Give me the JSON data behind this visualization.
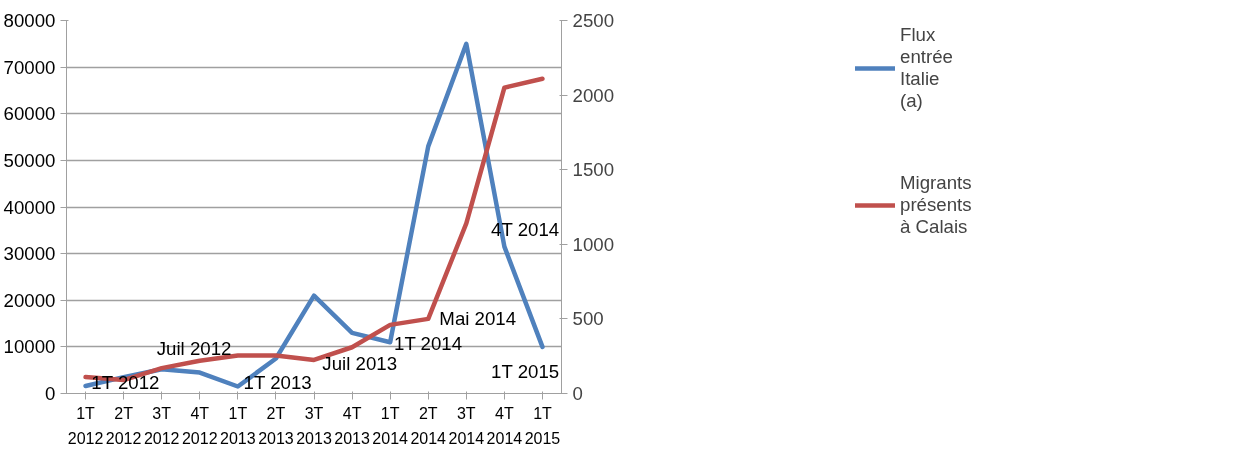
{
  "chart_data": {
    "type": "line",
    "categories": [
      "1T 2012",
      "2T 2012",
      "3T 2012",
      "4T 2012",
      "1T 2013",
      "2T 2013",
      "3T 2013",
      "4T 2013",
      "1T 2014",
      "2T 2014",
      "3T 2014",
      "4T 2014",
      "1T 2015"
    ],
    "series": [
      {
        "name": "Flux entrée Italie (a)",
        "color": "#4f81bd",
        "values": [
          1600,
          3500,
          5200,
          4500,
          1500,
          7500,
          21000,
          13000,
          11000,
          53000,
          75000,
          31500,
          10000
        ]
      },
      {
        "name": "Migrants présents à Calais",
        "color": "#c0504d",
        "axis": "y2",
        "values": [
          110,
          90,
          170,
          220,
          255,
          255,
          225,
          310,
          460,
          500,
          1140,
          2050,
          2110
        ]
      }
    ],
    "ylim": [
      0,
      80000
    ],
    "yticks": [
      0,
      10000,
      20000,
      30000,
      40000,
      50000,
      60000,
      70000,
      80000
    ],
    "y2lim": [
      0,
      2500
    ],
    "y2ticks": [
      0,
      500,
      1000,
      1500,
      2000,
      2500
    ],
    "grid": "y",
    "legend": "right",
    "marker": "none",
    "line_style": "solid",
    "annotations": [
      "1T 2012",
      "Juil 2012",
      "1T 2013",
      "Juil 2013",
      "1T 2014",
      "Mai 2014",
      "4T 2014",
      "1T 2015"
    ]
  }
}
